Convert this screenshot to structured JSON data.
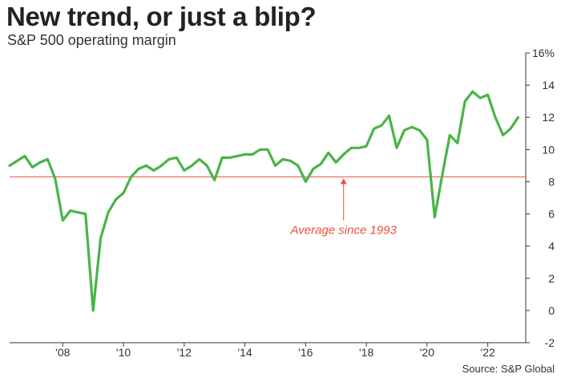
{
  "header": {
    "title": "New trend, or just a blip?",
    "subtitle": "S&P 500 operating margin"
  },
  "footer": {
    "source": "Source: S&P Global"
  },
  "colors": {
    "line": "#4ab447",
    "average": "#e8503a",
    "annotation": "#e8503a",
    "axis": "#333333"
  },
  "chart_data": {
    "type": "line",
    "title": "New trend, or just a blip?",
    "subtitle": "S&P 500 operating margin",
    "x_tick_labels": [
      "'08",
      "'10",
      "'12",
      "'14",
      "'16",
      "'18",
      "'20",
      "'22"
    ],
    "x_tick_years": [
      2008,
      2010,
      2012,
      2014,
      2016,
      2018,
      2020,
      2022
    ],
    "y_tick_labels": [
      "16%",
      "14",
      "12",
      "10",
      "8",
      "6",
      "4",
      "2",
      "0",
      "-2"
    ],
    "y_tick_values": [
      16,
      14,
      12,
      10,
      8,
      6,
      4,
      2,
      0,
      -2
    ],
    "xlim": [
      2006.25,
      2023.25
    ],
    "ylim": [
      -2,
      16
    ],
    "grid": false,
    "series": [
      {
        "x": [
          2006.25,
          2006.5,
          2006.75,
          2007.0,
          2007.25,
          2007.5,
          2007.75,
          2008.0,
          2008.25,
          2008.5,
          2008.75,
          2009.0,
          2009.25,
          2009.5,
          2009.75,
          2010.0,
          2010.25,
          2010.5,
          2010.75,
          2011.0,
          2011.25,
          2011.5,
          2011.75,
          2012.0,
          2012.25,
          2012.5,
          2012.75,
          2013.0,
          2013.25,
          2013.5,
          2013.75,
          2014.0,
          2014.25,
          2014.5,
          2014.75,
          2015.0,
          2015.25,
          2015.5,
          2015.75,
          2016.0,
          2016.25,
          2016.5,
          2016.75,
          2017.0,
          2017.25,
          2017.5,
          2017.75,
          2018.0,
          2018.25,
          2018.5,
          2018.75,
          2019.0,
          2019.25,
          2019.5,
          2019.75,
          2020.0,
          2020.25,
          2020.5,
          2020.75,
          2021.0,
          2021.25,
          2021.5,
          2021.75,
          2022.0,
          2022.25,
          2022.5,
          2022.75,
          2023.0
        ],
        "values": [
          9.0,
          9.3,
          9.6,
          8.9,
          9.2,
          9.4,
          8.2,
          5.6,
          6.2,
          6.1,
          6.0,
          0.0,
          4.5,
          6.1,
          6.9,
          7.3,
          8.3,
          8.8,
          9.0,
          8.7,
          9.0,
          9.4,
          9.5,
          8.7,
          9.0,
          9.4,
          9.0,
          8.1,
          9.5,
          9.5,
          9.6,
          9.7,
          9.7,
          10.0,
          10.0,
          9.0,
          9.4,
          9.3,
          9.0,
          8.0,
          8.8,
          9.1,
          9.8,
          9.2,
          9.7,
          10.1,
          10.1,
          10.2,
          11.3,
          11.5,
          12.1,
          10.1,
          11.2,
          11.4,
          11.2,
          10.6,
          5.8,
          8.4,
          10.9,
          10.4,
          13.0,
          13.6,
          13.2,
          13.4,
          12.0,
          10.9,
          11.3,
          12.0
        ]
      }
    ],
    "reference_lines": [
      {
        "y": 8.3,
        "label": "Average since 1993",
        "label_x": 2017.25,
        "label_y": 5.0
      }
    ]
  }
}
